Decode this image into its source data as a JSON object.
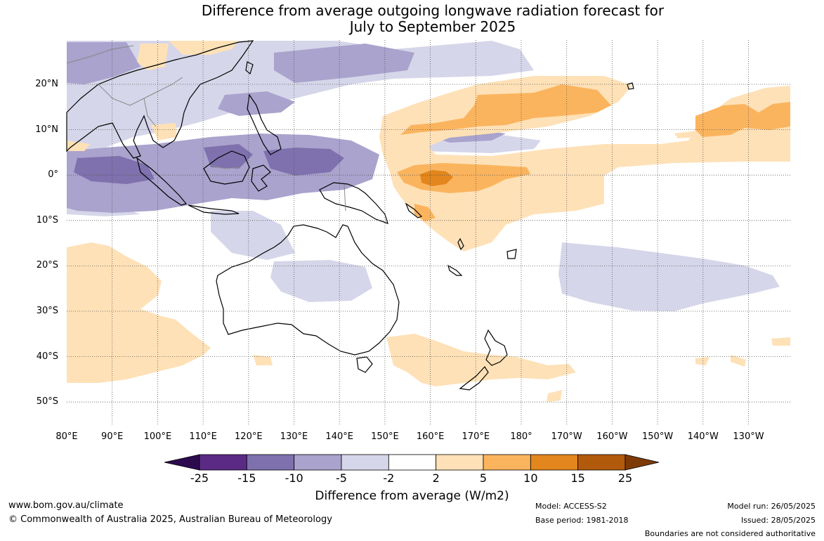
{
  "title": {
    "line1": "Difference from average outgoing longwave radiation forecast for",
    "line2": "July to September 2025"
  },
  "map": {
    "lat_labels": [
      "20°N",
      "10°N",
      "0°",
      "10°S",
      "20°S",
      "30°S",
      "40°S",
      "50°S"
    ],
    "lon_labels": [
      "80°E",
      "90°E",
      "100°E",
      "110°E",
      "120°E",
      "130°E",
      "140°E",
      "150°E",
      "160°E",
      "170°E",
      "180°",
      "170°W",
      "160°W",
      "150°W",
      "140°W",
      "130°W"
    ],
    "land_outline_color": "#000000",
    "gridline_style": "dotted"
  },
  "colorbar": {
    "ticks": [
      "-25",
      "-15",
      "-10",
      "-5",
      "-2",
      "2",
      "5",
      "10",
      "15",
      "25"
    ],
    "colors": [
      "#2d0a4e",
      "#5a2a85",
      "#7e71ae",
      "#a9a3cd",
      "#d6d6ea",
      "#ffffff",
      "#fee1b7",
      "#fbb45e",
      "#e2861d",
      "#b15a0c",
      "#7e3a06"
    ],
    "label": "Difference from average (W/m2)"
  },
  "footer": {
    "website": "www.bom.gov.au/climate",
    "copyright": "© Commonwealth of Australia 2025, Australian Bureau of Meteorology",
    "model": "Model: ACCESS-S2",
    "base_period": "Base period: 1981-2018",
    "model_run": "Model run: 26/05/2025",
    "issued": "Issued: 28/05/2025",
    "disclaimer": "Boundaries are not considered authoritative"
  }
}
